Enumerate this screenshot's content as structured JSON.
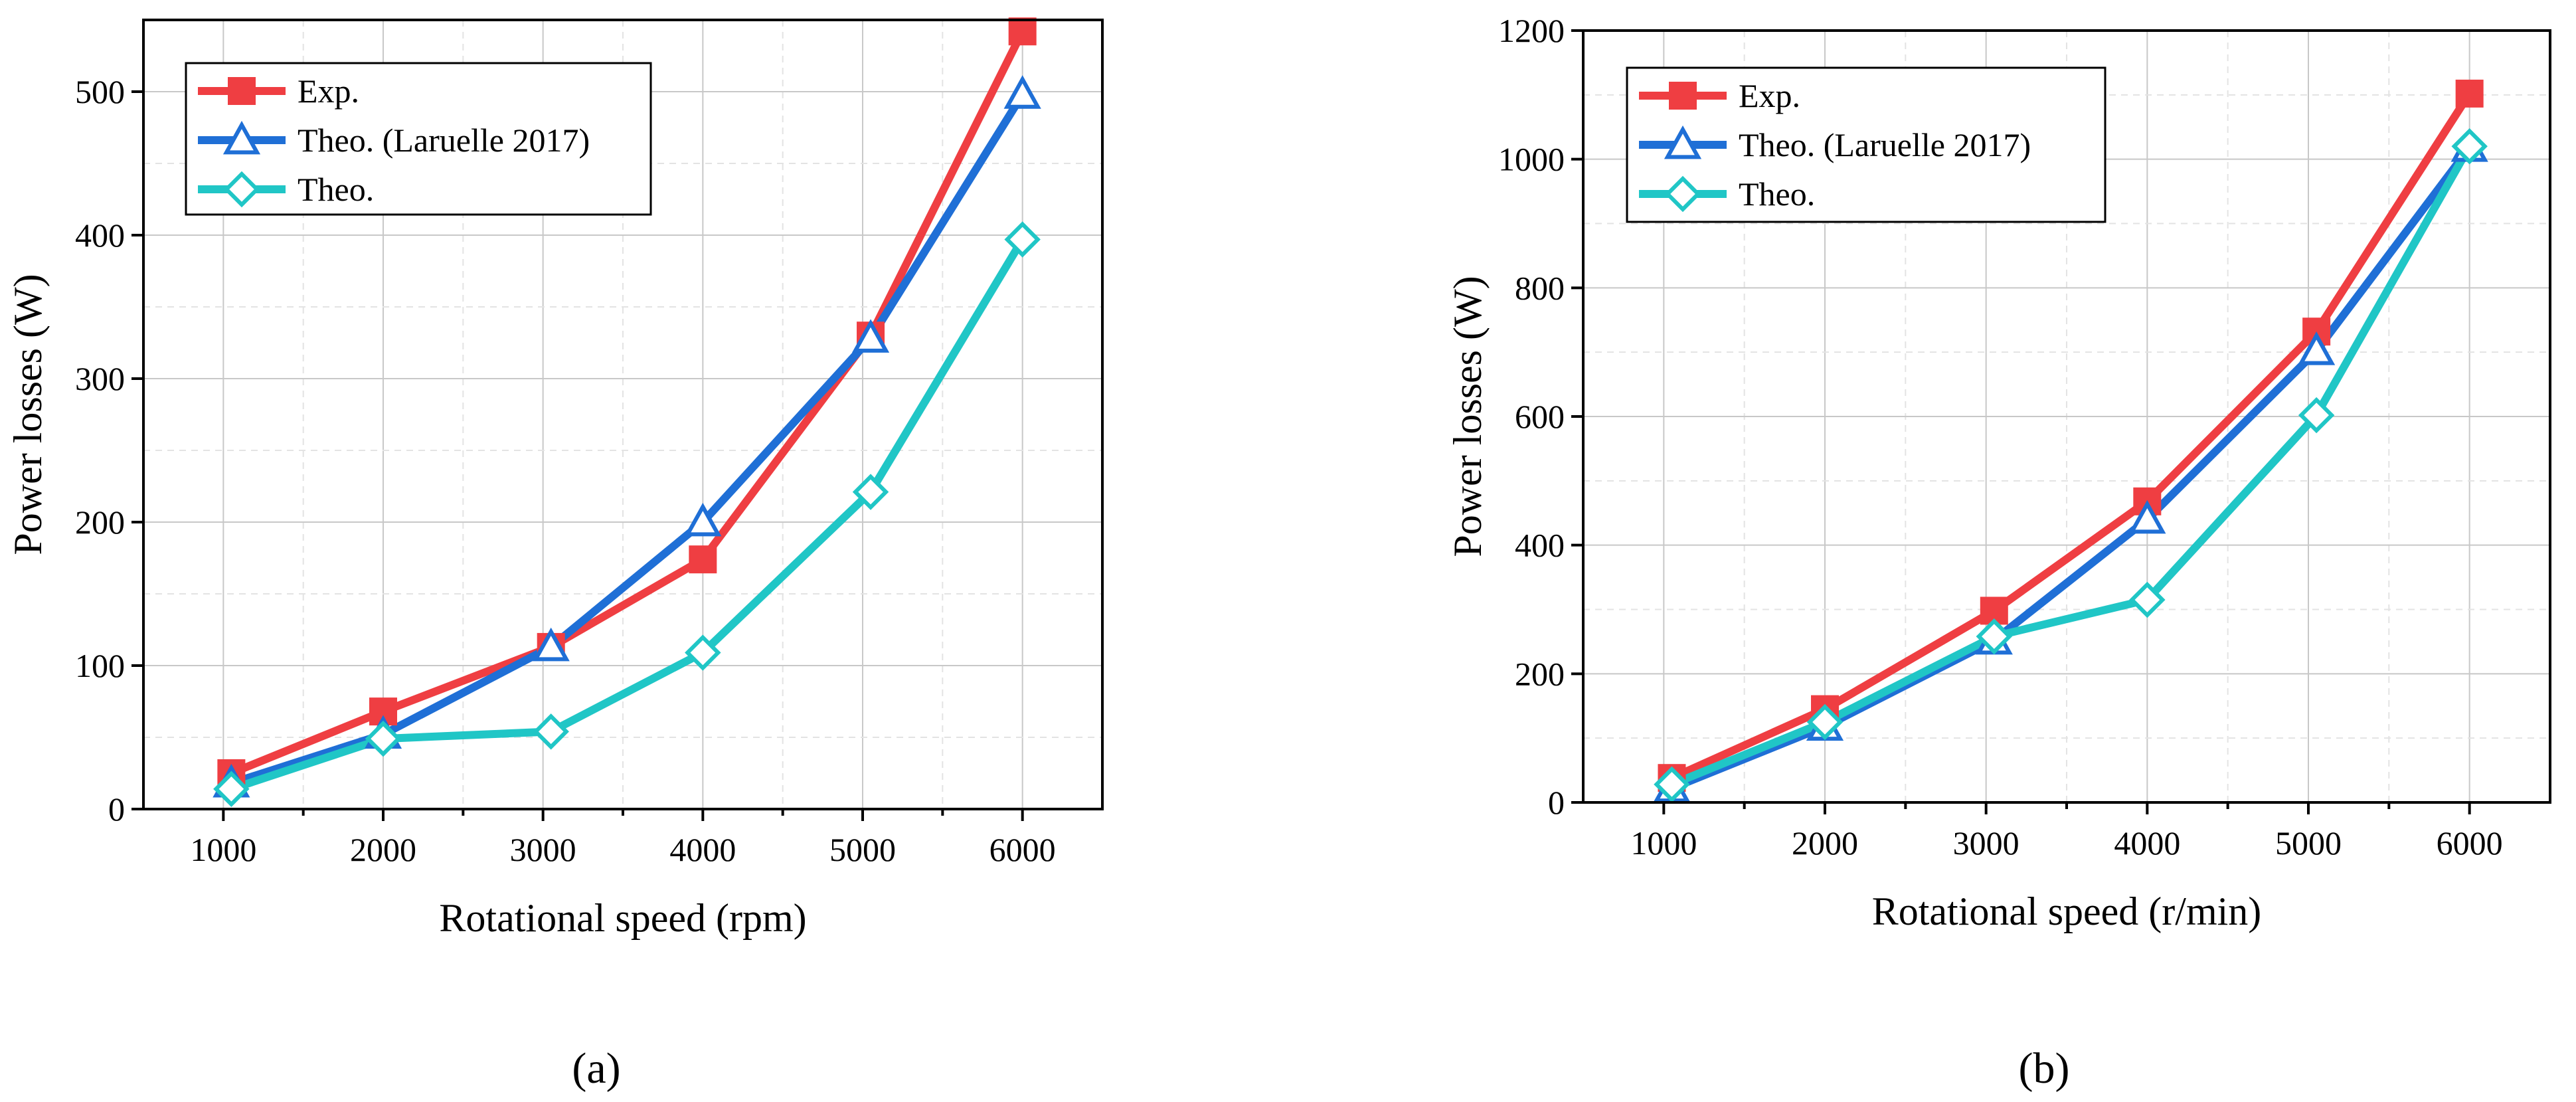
{
  "chart_data": [
    {
      "type": "line",
      "panel_label": "(a)",
      "panel_letter": "a",
      "xlabel": "Rotational speed (rpm)",
      "ylabel": "Power losses (W)",
      "xlim": [
        500,
        6500
      ],
      "ylim": [
        0,
        550
      ],
      "xticks": [
        1000,
        2000,
        3000,
        4000,
        5000,
        6000
      ],
      "yticks": [
        0,
        100,
        200,
        300,
        400,
        500
      ],
      "grid": true,
      "legend_position": "top-left",
      "series": [
        {
          "name": "Exp.",
          "color": "#ef3e42",
          "marker": "square-filled",
          "x": [
            1050,
            2000,
            3050,
            4000,
            5050,
            6000
          ],
          "values": [
            25,
            68,
            113,
            174,
            330,
            542
          ]
        },
        {
          "name": "Theo. (Laruelle 2017)",
          "color": "#1f6fd6",
          "marker": "triangle-open",
          "x": [
            1050,
            2000,
            3050,
            4000,
            5050,
            6000
          ],
          "values": [
            18,
            52,
            113,
            200,
            328,
            498
          ]
        },
        {
          "name": "Theo.",
          "color": "#20c6c6",
          "marker": "diamond-open",
          "x": [
            1050,
            2000,
            3050,
            4000,
            5050,
            6000
          ],
          "values": [
            14,
            49,
            54,
            109,
            221,
            397
          ]
        }
      ]
    },
    {
      "type": "line",
      "panel_label": "(b)",
      "panel_letter": "b",
      "xlabel": "Rotational speed (r/min)",
      "ylabel": "Power losses (W)",
      "xlim": [
        500,
        6500
      ],
      "ylim": [
        0,
        1200
      ],
      "xticks": [
        1000,
        2000,
        3000,
        4000,
        5000,
        6000
      ],
      "yticks": [
        0,
        200,
        400,
        600,
        800,
        1000,
        1200
      ],
      "grid": true,
      "legend_position": "top-left",
      "series": [
        {
          "name": "Exp.",
          "color": "#ef3e42",
          "marker": "square-filled",
          "x": [
            1050,
            2000,
            3050,
            4000,
            5050,
            6000
          ],
          "values": [
            38,
            145,
            298,
            468,
            732,
            1102
          ]
        },
        {
          "name": "Theo. (Laruelle 2017)",
          "color": "#1f6fd6",
          "marker": "triangle-open",
          "x": [
            1050,
            2000,
            3050,
            4000,
            5050,
            6000
          ],
          "values": [
            22,
            118,
            252,
            440,
            702,
            1018
          ]
        },
        {
          "name": "Theo.",
          "color": "#20c6c6",
          "marker": "diamond-open",
          "x": [
            1050,
            2000,
            3050,
            4000,
            5050,
            6000
          ],
          "values": [
            28,
            125,
            258,
            315,
            602,
            1020
          ]
        }
      ]
    }
  ]
}
